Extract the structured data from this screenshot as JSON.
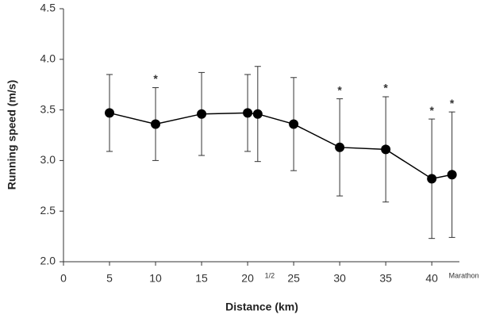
{
  "chart_data": {
    "type": "line",
    "x_label": "Distance (km)",
    "y_label": "Running speed (m/s)",
    "x": [
      5,
      10,
      15,
      20,
      21.0975,
      25,
      30,
      35,
      40,
      42.195
    ],
    "series": [
      {
        "color": "#000000",
        "values": [
          3.47,
          3.36,
          3.46,
          3.47,
          3.46,
          3.36,
          3.13,
          3.11,
          2.82,
          2.86
        ],
        "errors": [
          0.38,
          0.36,
          0.41,
          0.38,
          0.47,
          0.46,
          0.48,
          0.52,
          0.59,
          0.62
        ],
        "annotations": [
          null,
          "*",
          null,
          null,
          null,
          null,
          "*",
          "*",
          "*",
          "*"
        ]
      }
    ],
    "xlim": [
      0,
      43
    ],
    "ylim": [
      2.0,
      4.5
    ],
    "xticks": [
      0,
      5,
      10,
      15,
      20,
      {
        "value": 21.0975,
        "label": "1/2"
      },
      25,
      30,
      35,
      40,
      {
        "value": 42.195,
        "label": "Marathon"
      }
    ],
    "yticks": [
      {
        "value": 2.0,
        "label": "2.0"
      },
      {
        "value": 2.5,
        "label": "2.5"
      },
      {
        "value": 3.0,
        "label": "3.0"
      },
      {
        "value": 3.5,
        "label": "3.5"
      },
      {
        "value": 4.0,
        "label": "4.0"
      },
      {
        "value": 4.5,
        "label": "4.5"
      }
    ]
  }
}
